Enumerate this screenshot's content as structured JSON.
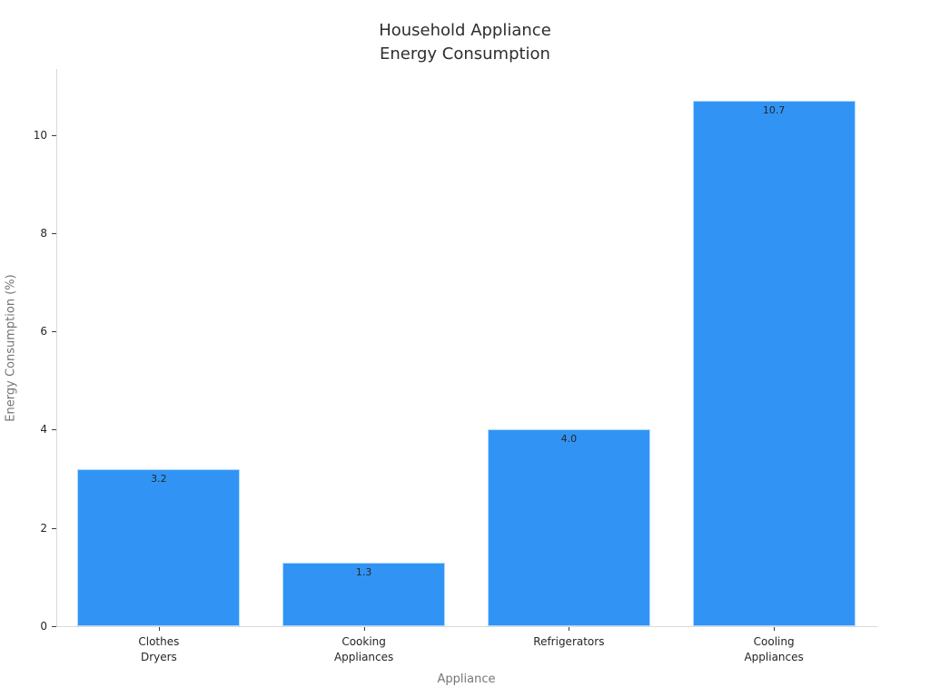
{
  "chart_data": {
    "type": "bar",
    "title": "Household Appliance\nEnergy Consumption",
    "xlabel": "Appliance",
    "ylabel": "Energy Consumption (%)",
    "categories": [
      "Clothes\nDryers",
      "Cooking\nAppliances",
      "Refrigerators",
      "Cooling\nAppliances"
    ],
    "values": [
      3.2,
      1.3,
      4.0,
      10.7
    ],
    "value_labels": [
      "3.2",
      "1.3",
      "4.0",
      "10.7"
    ],
    "yticks": [
      "0",
      "2",
      "4",
      "6",
      "8",
      "10"
    ],
    "ytick_values": [
      0,
      2,
      4,
      6,
      8,
      10
    ],
    "ylim": [
      0,
      11.34
    ],
    "bar_color": "#3194F5",
    "bar_width_fraction": 0.792,
    "grid": false,
    "legend": null,
    "spine_color": "#d9d9d9",
    "tick_color": "#3c3c3c",
    "title_color": "#2e2e2e",
    "axis_title_color": "#757575",
    "tick_label_color": "#262626"
  }
}
